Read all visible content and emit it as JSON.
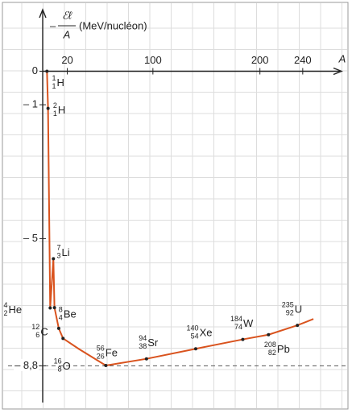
{
  "chart_data": {
    "type": "line",
    "y_label": {
      "sign": "–",
      "numerator": "ℰℓ",
      "denominator": "A",
      "unit": "(MeV/nucléon)"
    },
    "x_label": "A",
    "x": [
      1,
      2,
      4,
      7,
      8,
      12,
      16,
      31,
      56,
      94,
      140,
      184,
      208,
      235,
      250
    ],
    "series": [
      {
        "color": "#d9531e",
        "values": [
          0,
          -1.11,
          -7.07,
          -5.6,
          -7.06,
          -7.68,
          -7.98,
          -8.3,
          -8.79,
          -8.59,
          -8.29,
          -8.01,
          -7.87,
          -7.59,
          -7.4
        ],
        "point_labels": [
          {
            "mass": "1",
            "charge": "1",
            "symbol": "H"
          },
          {
            "mass": "2",
            "charge": "1",
            "symbol": "H"
          },
          {
            "mass": "4",
            "charge": "2",
            "symbol": "He"
          },
          {
            "mass": "7",
            "charge": "3",
            "symbol": "Li"
          },
          {
            "mass": "8",
            "charge": "4",
            "symbol": "Be"
          },
          {
            "mass": "12",
            "charge": "6",
            "symbol": "C"
          },
          {
            "mass": "16",
            "charge": "8",
            "symbol": "O"
          },
          null,
          {
            "mass": "56",
            "charge": "26",
            "symbol": "Fe"
          },
          {
            "mass": "94",
            "charge": "38",
            "symbol": "Sr"
          },
          {
            "mass": "140",
            "charge": "54",
            "symbol": "Xe"
          },
          {
            "mass": "184",
            "charge": "74",
            "symbol": "W"
          },
          {
            "mass": "208",
            "charge": "82",
            "symbol": "Pb"
          },
          {
            "mass": "235",
            "charge": "92",
            "symbol": "U"
          },
          null
        ]
      }
    ],
    "xlim": [
      -3,
      274
    ],
    "xticks": [
      20,
      100,
      200,
      240
    ],
    "ylim": [
      -9.8,
      1.6
    ],
    "yticks": [
      0,
      {
        "value": -1,
        "label": "– 1"
      },
      {
        "value": -5,
        "label": "– 5"
      },
      {
        "value": -8.8,
        "label": "– 8,8"
      }
    ],
    "reference_lines": [
      {
        "y": -8.8,
        "style": "dashed"
      }
    ],
    "grid": true
  }
}
